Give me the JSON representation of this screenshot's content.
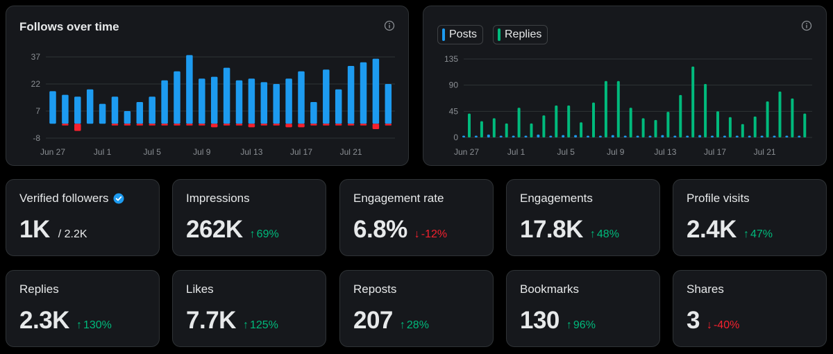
{
  "colors": {
    "blue": "#1d9bf0",
    "red": "#f4212e",
    "green": "#00ba7c",
    "grid": "#2f3336",
    "axis_text": "#8b8f94"
  },
  "follows_card": {
    "title": "Follows over time",
    "info_icon": "info-icon",
    "chart_data": {
      "type": "bar",
      "title": "Follows over time",
      "y_ticks": [
        37,
        22,
        7,
        -8
      ],
      "ylim": [
        -8,
        37
      ],
      "x_tick_labels": [
        "Jun 27",
        "Jul 1",
        "Jul 5",
        "Jul 9",
        "Jul 13",
        "Jul 17",
        "Jul 21"
      ],
      "grid": true,
      "days": 28,
      "series": [
        {
          "color": "blue",
          "values": [
            18,
            16,
            15,
            19,
            11,
            15,
            7,
            12,
            15,
            24,
            29,
            38,
            25,
            26,
            31,
            24,
            25,
            23,
            22,
            25,
            29,
            12,
            30,
            19,
            32,
            34,
            36,
            22
          ]
        },
        {
          "color": "red",
          "values": [
            0,
            -1,
            -4,
            0,
            0,
            -1,
            -1,
            -1,
            -1,
            -1,
            -1,
            -1,
            -1,
            -2,
            -1,
            -1,
            -2,
            -1,
            -1,
            -2,
            -2,
            -1,
            -1,
            -1,
            -1,
            -1,
            -3,
            -1
          ]
        }
      ]
    }
  },
  "posts_card": {
    "legend": [
      {
        "label": "Posts",
        "color": "blue"
      },
      {
        "label": "Replies",
        "color": "green"
      }
    ],
    "info_icon": "info-icon",
    "chart_data": {
      "type": "bar",
      "y_ticks": [
        135,
        90,
        45,
        0
      ],
      "ylim": [
        0,
        135
      ],
      "x_tick_labels": [
        "Jun 27",
        "Jul 1",
        "Jul 5",
        "Jul 9",
        "Jul 13",
        "Jul 17",
        "Jul 21"
      ],
      "grid": true,
      "days": 28,
      "series": [
        {
          "name": "Posts",
          "color": "blue",
          "values": [
            3,
            3,
            5,
            3,
            3,
            3,
            5,
            3,
            4,
            4,
            3,
            3,
            4,
            3,
            3,
            3,
            4,
            3,
            3,
            4,
            3,
            3,
            3,
            3,
            3,
            3,
            3,
            3
          ]
        },
        {
          "name": "Replies",
          "color": "green",
          "values": [
            41,
            28,
            33,
            24,
            51,
            24,
            38,
            55,
            55,
            26,
            60,
            97,
            97,
            51,
            33,
            30,
            44,
            73,
            122,
            92,
            45,
            35,
            23,
            36,
            62,
            79,
            67,
            41
          ]
        }
      ]
    }
  },
  "stats": [
    {
      "label": "Verified followers",
      "value": "1K",
      "sub": "/ 2.2K",
      "delta": "",
      "direction": "",
      "verified_icon": "verified-badge-icon"
    },
    {
      "label": "Impressions",
      "value": "262K",
      "sub": "",
      "delta": "69%",
      "direction": "up"
    },
    {
      "label": "Engagement rate",
      "value": "6.8%",
      "sub": "",
      "delta": "-12%",
      "direction": "down"
    },
    {
      "label": "Engagements",
      "value": "17.8K",
      "sub": "",
      "delta": "48%",
      "direction": "up"
    },
    {
      "label": "Profile visits",
      "value": "2.4K",
      "sub": "",
      "delta": "47%",
      "direction": "up"
    },
    {
      "label": "Replies",
      "value": "2.3K",
      "sub": "",
      "delta": "130%",
      "direction": "up"
    },
    {
      "label": "Likes",
      "value": "7.7K",
      "sub": "",
      "delta": "125%",
      "direction": "up"
    },
    {
      "label": "Reposts",
      "value": "207",
      "sub": "",
      "delta": "28%",
      "direction": "up"
    },
    {
      "label": "Bookmarks",
      "value": "130",
      "sub": "",
      "delta": "96%",
      "direction": "up"
    },
    {
      "label": "Shares",
      "value": "3",
      "sub": "",
      "delta": "-40%",
      "direction": "down"
    }
  ]
}
